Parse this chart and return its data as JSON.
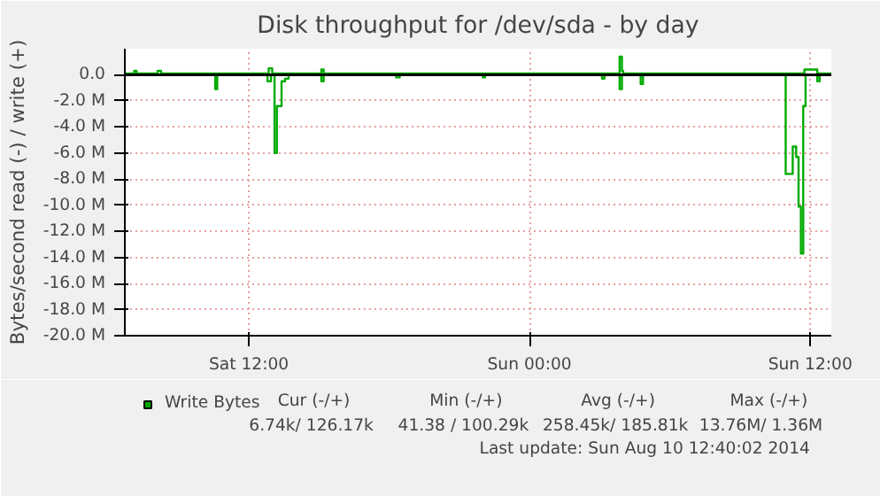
{
  "chart_data": {
    "type": "step",
    "title": "Disk throughput for /dev/sda - by day",
    "ylabel": "Bytes/second read (-) / write (+)",
    "xlim": [
      "2014-08-09T06:42",
      "2014-08-10T12:54"
    ],
    "xticks": [
      {
        "value": "2014-08-09T12:00",
        "label": "Sat 12:00"
      },
      {
        "value": "2014-08-10T00:00",
        "label": "Sun 00:00"
      },
      {
        "value": "2014-08-10T12:00",
        "label": "Sun 12:00"
      }
    ],
    "ylim": [
      -20,
      2
    ],
    "yticks": [
      {
        "value": 0,
        "label": "0.0"
      },
      {
        "value": -2,
        "label": "-2.0 M"
      },
      {
        "value": -4,
        "label": "-4.0 M"
      },
      {
        "value": -6,
        "label": "-6.0 M"
      },
      {
        "value": -8,
        "label": "-8.0 M"
      },
      {
        "value": -10,
        "label": "-10.0 M"
      },
      {
        "value": -12,
        "label": "-12.0 M"
      },
      {
        "value": -14,
        "label": "-14.0 M"
      },
      {
        "value": -16,
        "label": "-16.0 M"
      },
      {
        "value": -18,
        "label": "-18.0 M"
      },
      {
        "value": -20,
        "label": "-20.0 M"
      }
    ],
    "grid": true,
    "legend": "bottom left",
    "ref_lines": [
      {
        "axis": "y",
        "value": 0,
        "color": "#000000"
      }
    ],
    "series": [
      {
        "color": "#00aa00",
        "x": [
          "2014-08-09T06:42",
          "2014-08-09T10:30",
          "2014-08-09T10:34",
          "2014-08-09T10:39",
          "2014-08-09T12:48",
          "2014-08-09T12:57",
          "2014-08-09T13:06",
          "2014-08-09T13:12",
          "2014-08-09T13:24",
          "2014-08-09T13:33",
          "2014-08-09T13:42",
          "2014-08-09T15:06",
          "2014-08-09T15:12",
          "2014-08-09T18:18",
          "2014-08-09T18:27",
          "2014-08-09T22:00",
          "2014-08-09T22:06",
          "2014-08-10T03:06",
          "2014-08-10T03:12",
          "2014-08-10T03:51",
          "2014-08-10T03:57",
          "2014-08-10T04:45",
          "2014-08-10T04:51",
          "2014-08-10T10:57",
          "2014-08-10T11:15",
          "2014-08-10T11:24",
          "2014-08-10T11:30",
          "2014-08-10T11:36",
          "2014-08-10T11:42",
          "2014-08-10T11:48",
          "2014-08-10T12:18",
          "2014-08-10T12:24",
          "2014-08-10T12:54"
        ],
        "values": [
          0,
          0,
          -1.1,
          0,
          -0.5,
          0,
          -6.0,
          -2.4,
          -0.5,
          -0.3,
          0,
          -0.5,
          0,
          -0.2,
          0,
          -0.2,
          0,
          -0.3,
          0,
          -1.1,
          0,
          -0.7,
          0,
          -7.6,
          -5.5,
          -6.3,
          -10.1,
          -13.7,
          -2.4,
          0,
          -0.5,
          0,
          0
        ]
      },
      {
        "name": "Write Bytes",
        "color": "#00aa00",
        "x": [
          "2014-08-09T06:42",
          "2014-08-09T07:06",
          "2014-08-09T07:12",
          "2014-08-09T08:06",
          "2014-08-09T08:15",
          "2014-08-09T12:51",
          "2014-08-09T13:00",
          "2014-08-09T15:06",
          "2014-08-09T15:12",
          "2014-08-10T03:51",
          "2014-08-10T03:57",
          "2014-08-10T04:00",
          "2014-08-10T11:45",
          "2014-08-10T12:12",
          "2014-08-10T12:18",
          "2014-08-10T12:54"
        ],
        "values": [
          0.1,
          0.3,
          0.1,
          0.3,
          0.1,
          0.5,
          0.1,
          0.4,
          0.1,
          1.4,
          0.3,
          0.1,
          0.4,
          0.4,
          0.1,
          0.1
        ]
      }
    ],
    "annotations": [
      "Cur (-/+)",
      "Min (-/+)",
      "Avg (-/+)",
      "Max (-/+)",
      "6.74k/  126.17k",
      "41.38 /  100.29k",
      "258.45k/  185.81k",
      "13.76M/    1.36M",
      "Last update: Sun Aug 10 12:40:02 2014"
    ]
  }
}
